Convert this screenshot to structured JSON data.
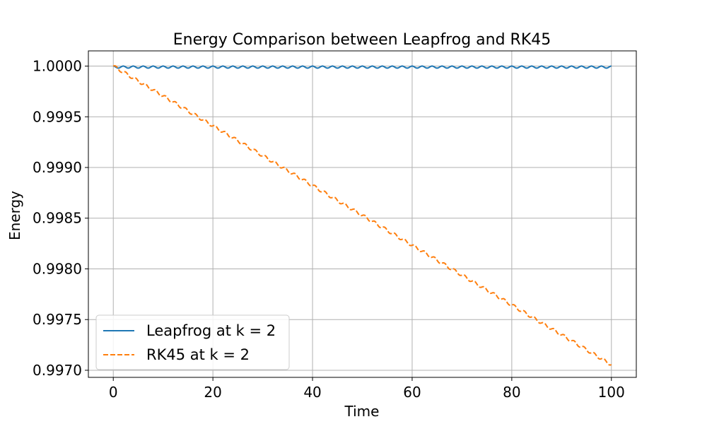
{
  "chart_data": {
    "type": "line",
    "title": "Energy Comparison between Leapfrog and RK45",
    "xlabel": "Time",
    "ylabel": "Energy",
    "xlim": [
      -5,
      105
    ],
    "ylim": [
      0.99693,
      1.00015
    ],
    "xticks": [
      0,
      20,
      40,
      60,
      80,
      100
    ],
    "xtick_labels": [
      "0",
      "20",
      "40",
      "60",
      "80",
      "100"
    ],
    "yticks": [
      0.997,
      0.9975,
      0.998,
      0.9985,
      0.999,
      0.9995,
      1.0
    ],
    "ytick_labels": [
      "0.9970",
      "0.9975",
      "0.9980",
      "0.9985",
      "0.9990",
      "0.9995",
      "1.0000"
    ],
    "grid": true,
    "legend_position": "lower-left",
    "series": [
      {
        "name": "Leapfrog at k = 2",
        "color": "#1f77b4",
        "style": "solid",
        "x_range": [
          0,
          100
        ],
        "baseline": 1.0,
        "oscillation_min": 0.99998,
        "oscillation_count": 50
      },
      {
        "name": "RK45 at k = 2",
        "color": "#ff7f0e",
        "style": "dashed",
        "x_range": [
          0,
          100
        ],
        "start": 1.0,
        "end": 0.997055,
        "ripple_count": 50
      }
    ]
  }
}
